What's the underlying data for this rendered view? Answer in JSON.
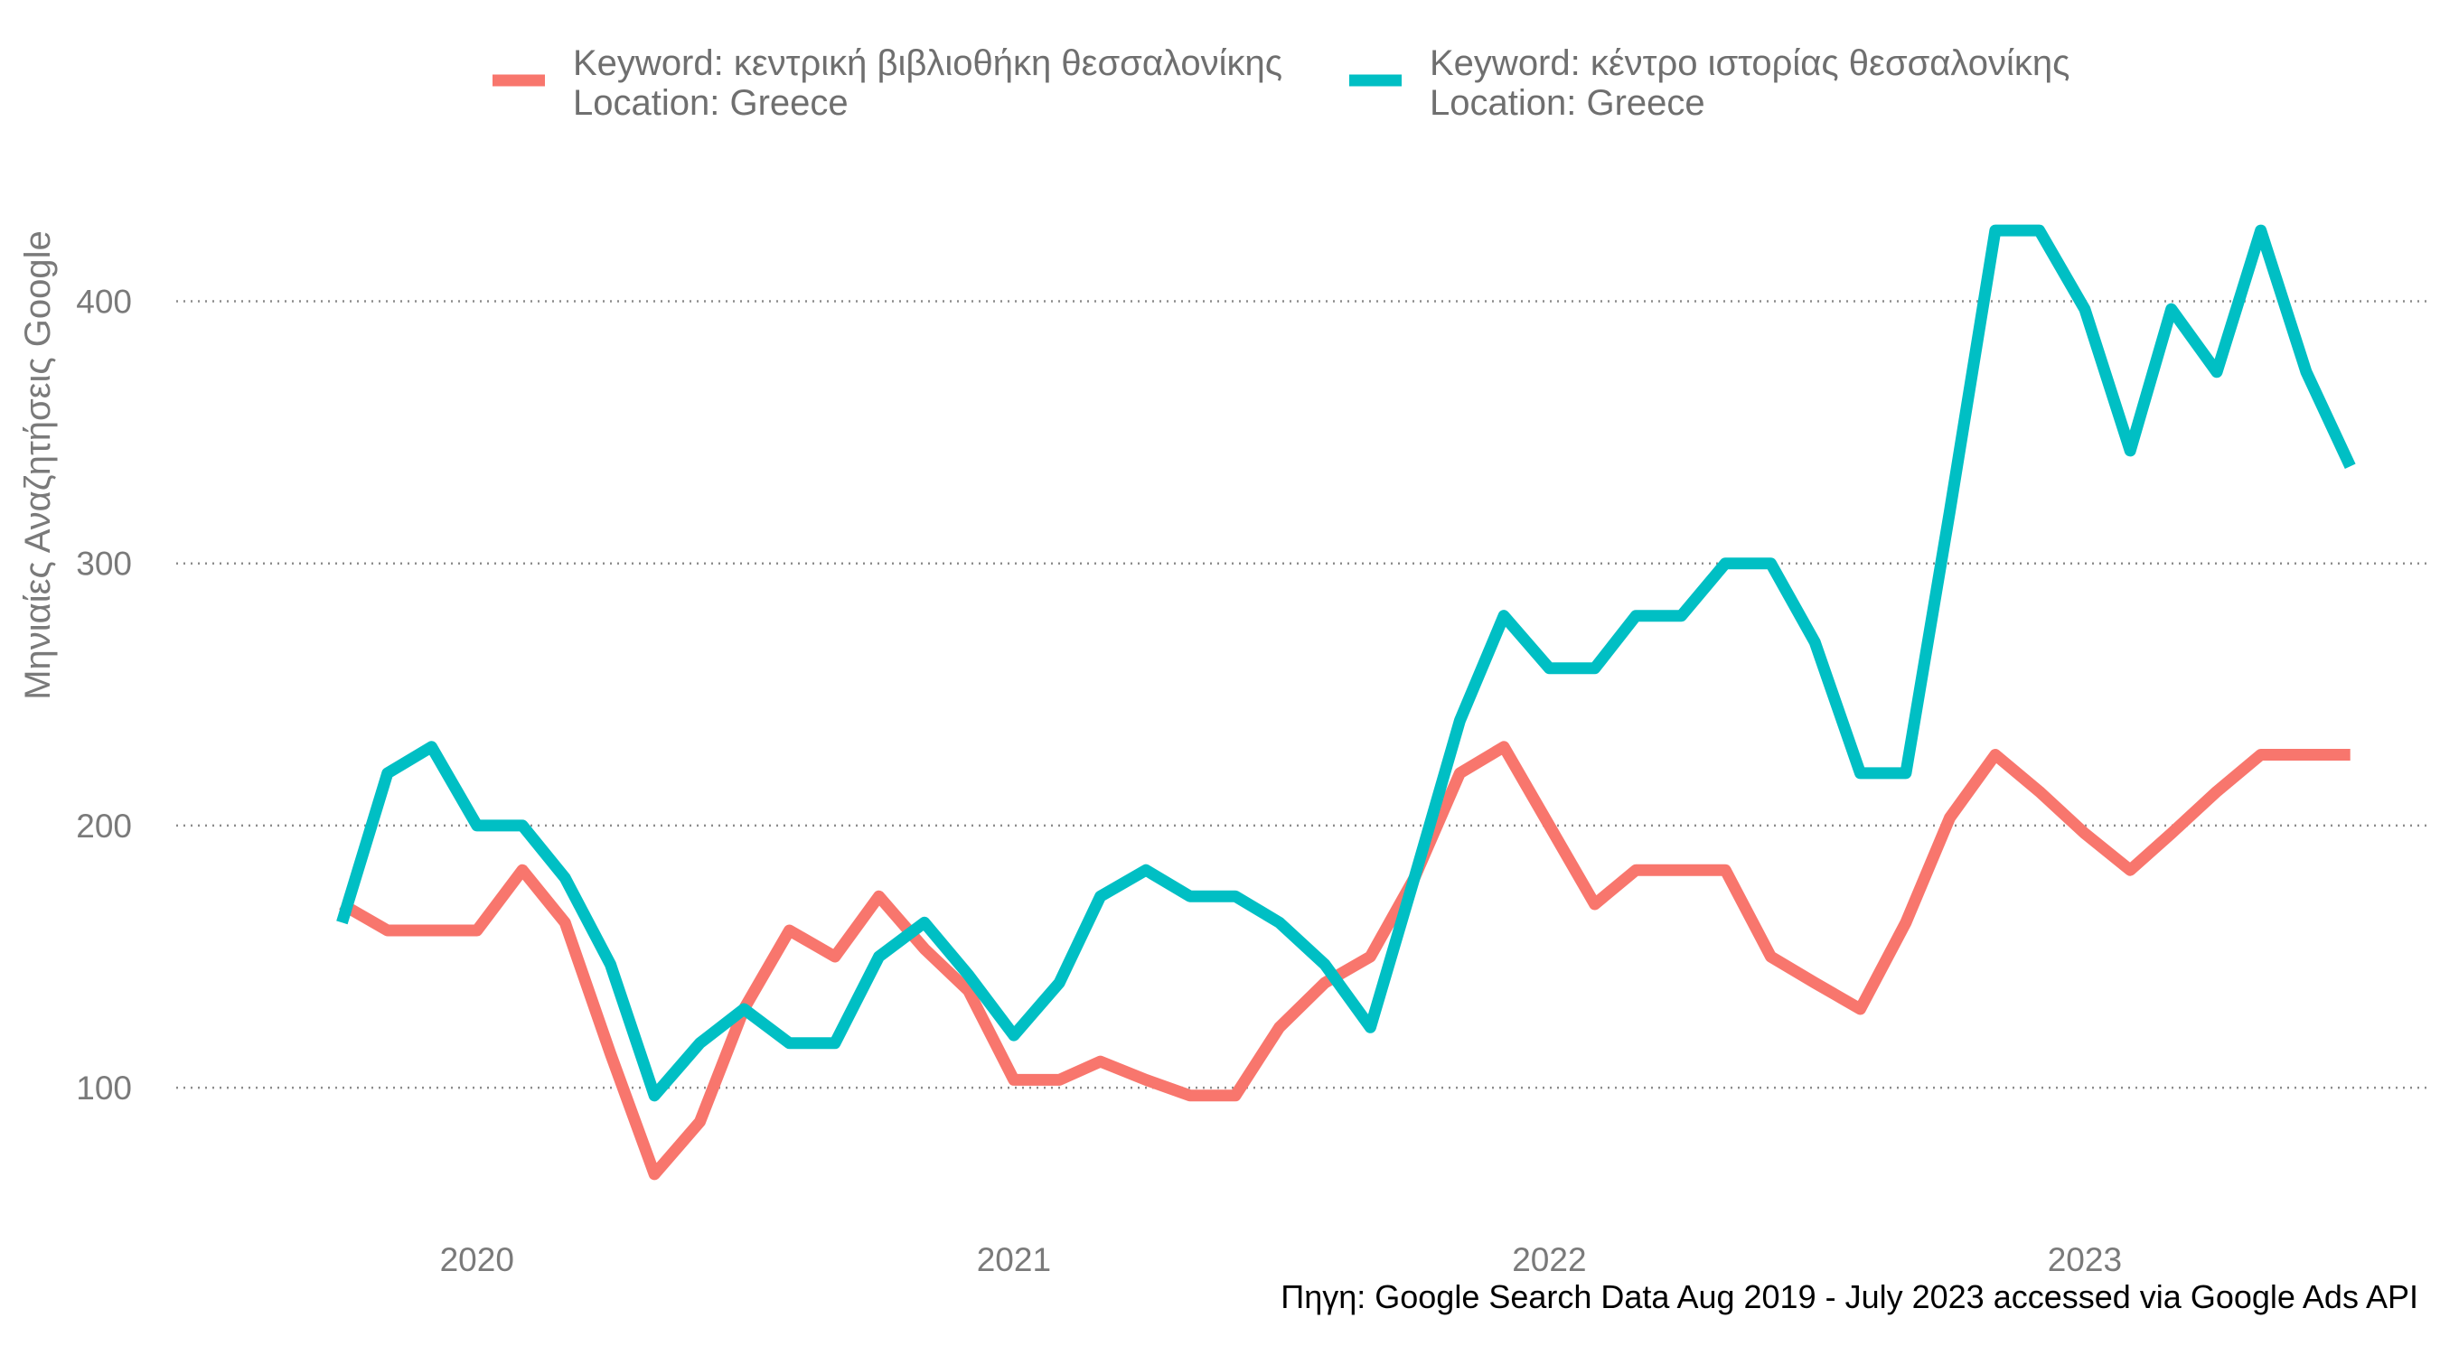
{
  "chart_data": {
    "type": "line",
    "ylabel": "Μηνιαίες Αναζητήσεις Google",
    "xlabel": "",
    "caption": "Πηγη: Google Search Data Aug 2019 - July 2023 accessed via Google Ads API",
    "ylim": [
      48,
      446
    ],
    "xlim": [
      "2019-06-10",
      "2023-08-25"
    ],
    "y_ticks": [
      100,
      200,
      300,
      400
    ],
    "x_ticks": [
      {
        "label": "2020",
        "date": "2020-01-01"
      },
      {
        "label": "2021",
        "date": "2021-01-01"
      },
      {
        "label": "2022",
        "date": "2022-01-01"
      },
      {
        "label": "2023",
        "date": "2023-01-01"
      }
    ],
    "grid": "horizontal dotted",
    "legend_position": "top",
    "x": [
      "2019-10-01",
      "2019-11-01",
      "2019-12-01",
      "2020-01-01",
      "2020-02-01",
      "2020-03-01",
      "2020-04-01",
      "2020-05-01",
      "2020-06-01",
      "2020-07-01",
      "2020-08-01",
      "2020-09-01",
      "2020-10-01",
      "2020-11-01",
      "2020-12-01",
      "2021-01-01",
      "2021-02-01",
      "2021-03-01",
      "2021-04-01",
      "2021-05-01",
      "2021-06-01",
      "2021-07-01",
      "2021-08-01",
      "2021-09-01",
      "2021-10-01",
      "2021-11-01",
      "2021-12-01",
      "2022-01-01",
      "2022-02-01",
      "2022-03-01",
      "2022-04-01",
      "2022-05-01",
      "2022-06-01",
      "2022-07-01",
      "2022-08-01",
      "2022-09-01",
      "2022-10-01",
      "2022-11-01",
      "2022-12-01",
      "2023-01-01",
      "2023-02-01",
      "2023-03-01",
      "2023-04-01",
      "2023-05-01",
      "2023-06-01",
      "2023-07-01"
    ],
    "series": [
      {
        "name_lines": [
          "Keyword: κεντρική βιβλιοθήκη θεσσαλονίκης",
          "Location: Greece"
        ],
        "color": "#F8766D",
        "values": [
          170,
          160,
          160,
          160,
          183,
          163,
          113,
          67,
          87,
          130,
          160,
          150,
          173,
          153,
          137,
          103,
          103,
          110,
          103,
          97,
          97,
          123,
          140,
          150,
          180,
          220,
          230,
          200,
          170,
          183,
          183,
          183,
          150,
          140,
          130,
          163,
          203,
          227,
          213,
          197,
          183,
          197,
          213,
          227,
          227,
          227
        ]
      },
      {
        "name_lines": [
          "Keyword: κέντρο ιστορίας θεσσαλονίκης",
          "Location: Greece"
        ],
        "color": "#00BFC4",
        "values": [
          163,
          220,
          230,
          200,
          200,
          180,
          147,
          97,
          117,
          130,
          117,
          117,
          150,
          163,
          143,
          120,
          140,
          173,
          183,
          173,
          173,
          163,
          147,
          123,
          180,
          240,
          280,
          260,
          260,
          280,
          280,
          300,
          300,
          270,
          220,
          220,
          320,
          427,
          427,
          397,
          343,
          397,
          373,
          427,
          373,
          337
        ]
      }
    ]
  }
}
